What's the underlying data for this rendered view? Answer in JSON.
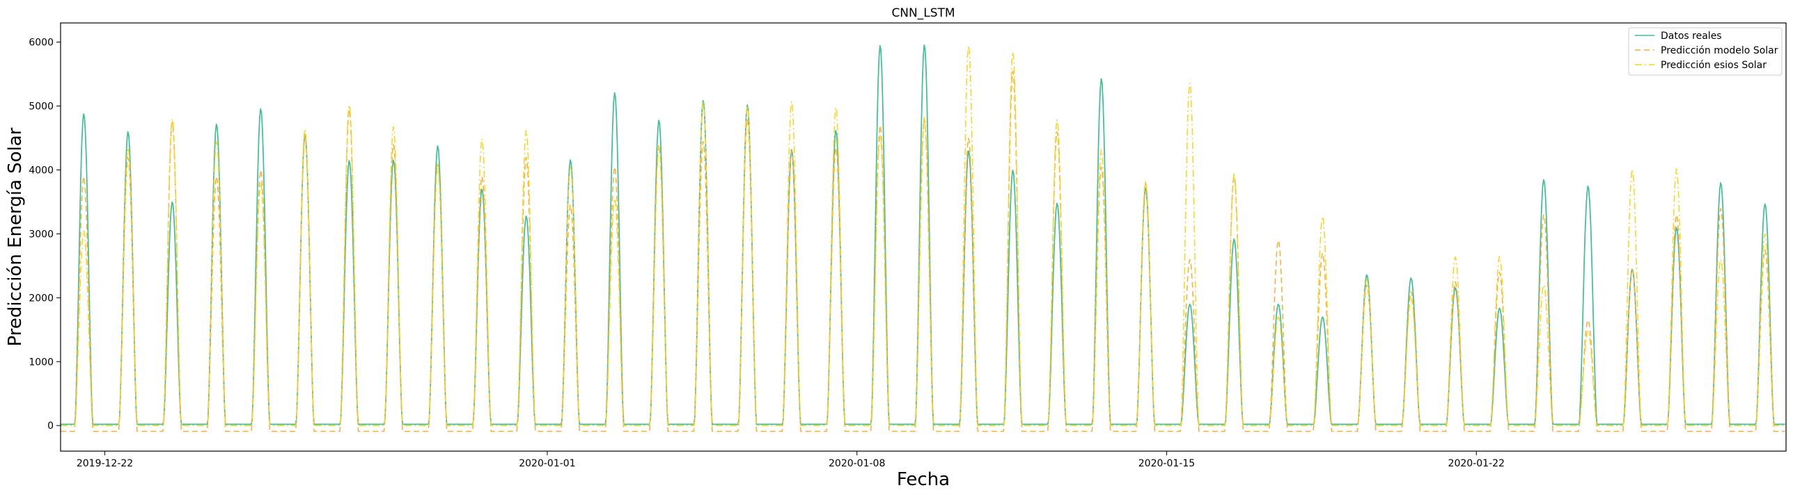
{
  "chart_data": {
    "type": "line",
    "title": "CNN_LSTM",
    "xlabel": "Fecha",
    "ylabel": "Predicción Energía Solar",
    "x_start": "2019-12-21T00:00",
    "x_end": "2020-01-29T00:00",
    "x_ticks": [
      "2019-12-22",
      "2020-01-01",
      "2020-01-08",
      "2020-01-15",
      "2020-01-22"
    ],
    "ylim": [
      -400,
      6300
    ],
    "y_ticks": [
      0,
      1000,
      2000,
      3000,
      4000,
      5000,
      6000
    ],
    "grid": false,
    "legend_position": "top-right",
    "days": [
      "2019-12-21",
      "2019-12-22",
      "2019-12-23",
      "2019-12-24",
      "2019-12-25",
      "2019-12-26",
      "2019-12-27",
      "2019-12-28",
      "2019-12-29",
      "2019-12-30",
      "2019-12-31",
      "2020-01-01",
      "2020-01-02",
      "2020-01-03",
      "2020-01-04",
      "2020-01-05",
      "2020-01-06",
      "2020-01-07",
      "2020-01-08",
      "2020-01-09",
      "2020-01-10",
      "2020-01-11",
      "2020-01-12",
      "2020-01-13",
      "2020-01-14",
      "2020-01-15",
      "2020-01-16",
      "2020-01-17",
      "2020-01-18",
      "2020-01-19",
      "2020-01-20",
      "2020-01-21",
      "2020-01-22",
      "2020-01-23",
      "2020-01-24",
      "2020-01-25",
      "2020-01-26",
      "2020-01-27",
      "2020-01-28"
    ],
    "series": [
      {
        "name": "Datos reales",
        "color": "#3cbf94",
        "style": "solid",
        "daily_peak": [
          4880,
          4600,
          3500,
          4720,
          4960,
          4560,
          4150,
          4160,
          4380,
          3700,
          3280,
          4160,
          5210,
          4780,
          5090,
          5020,
          4320,
          4620,
          5950,
          5960,
          4300,
          4000,
          3480,
          5430,
          3720,
          1900,
          2920,
          1900,
          1700,
          2360,
          2310,
          2160,
          1840,
          3850,
          3750,
          2450,
          3100,
          3800,
          3470
        ]
      },
      {
        "name": "Predicción modelo Solar",
        "color": "#ffaa33",
        "style": "dashed",
        "daily_peak": [
          3900,
          4200,
          4750,
          3900,
          4000,
          4550,
          4950,
          4400,
          4100,
          3900,
          4200,
          3450,
          4050,
          4400,
          4450,
          4800,
          4300,
          4350,
          4700,
          4800,
          4500,
          5550,
          4600,
          4050,
          3800,
          2600,
          3900,
          2900,
          2700,
          2200,
          2100,
          2250,
          2400,
          3300,
          1650,
          2450,
          3300,
          3400,
          2750
        ]
      },
      {
        "name": "Predicción esios Solar",
        "color": "#ffd21a",
        "style": "dashdot",
        "daily_peak": [
          3050,
          4350,
          4800,
          4450,
          3800,
          4640,
          5020,
          4680,
          4080,
          4490,
          4620,
          4050,
          3550,
          4380,
          5060,
          5010,
          5070,
          4980,
          4550,
          4830,
          5950,
          5850,
          4790,
          4320,
          3820,
          5360,
          3940,
          1700,
          3270,
          2290,
          2000,
          2640,
          2650,
          2200,
          1480,
          4010,
          4020,
          2600,
          3000
        ]
      }
    ]
  }
}
